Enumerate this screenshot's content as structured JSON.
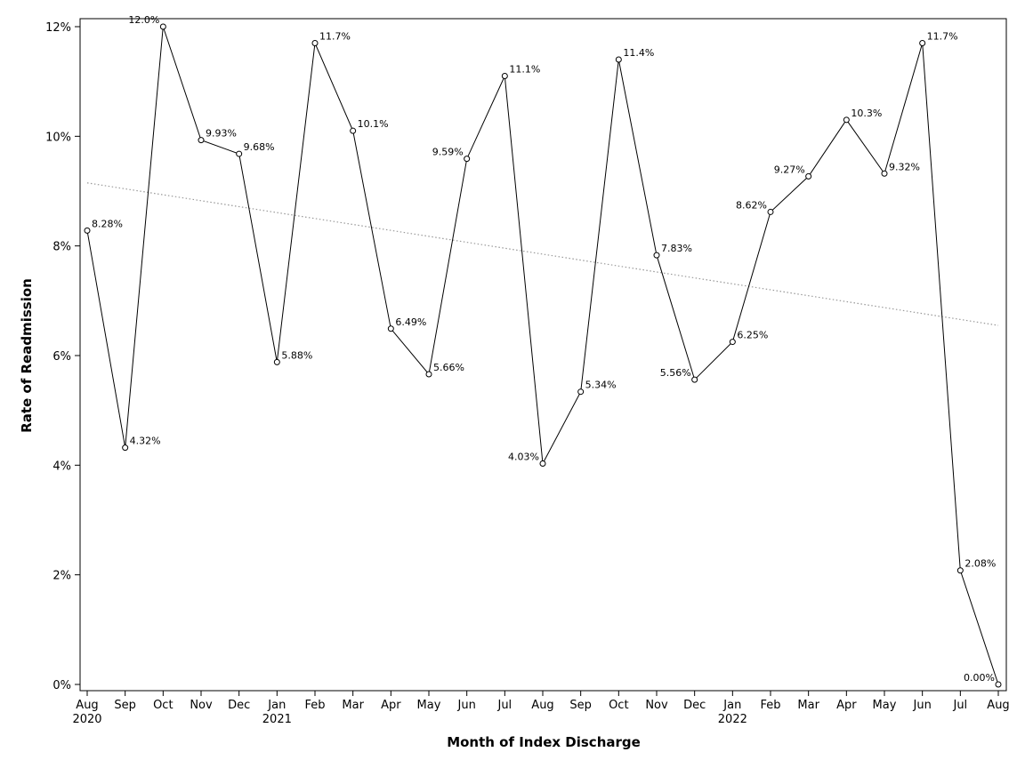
{
  "chart_data": {
    "type": "line",
    "xlabel": "Month of Index Discharge",
    "ylabel": "Rate of Readmission",
    "ylim": [
      0,
      12
    ],
    "yticks": [
      {
        "value": 0,
        "label": "0%"
      },
      {
        "value": 2,
        "label": "2%"
      },
      {
        "value": 4,
        "label": "4%"
      },
      {
        "value": 6,
        "label": "6%"
      },
      {
        "value": 8,
        "label": "8%"
      },
      {
        "value": 10,
        "label": "10%"
      },
      {
        "value": 12,
        "label": "12%"
      }
    ],
    "grid": false,
    "marker": "open-circle",
    "line_color": "#000000",
    "trend_color": "#999999",
    "trendline": {
      "style": "dotted",
      "start": 9.15,
      "end": 6.55
    },
    "points": [
      {
        "date": "2020-08",
        "month": "Aug",
        "year": "2020",
        "value": 8.28,
        "label": "8.28%",
        "label_side": "right"
      },
      {
        "date": "2020-09",
        "month": "Sep",
        "year": "",
        "value": 4.32,
        "label": "4.32%",
        "label_side": "right"
      },
      {
        "date": "2020-10",
        "month": "Oct",
        "year": "",
        "value": 12.0,
        "label": "12.0%",
        "label_side": "left"
      },
      {
        "date": "2020-11",
        "month": "Nov",
        "year": "",
        "value": 9.93,
        "label": "9.93%",
        "label_side": "right"
      },
      {
        "date": "2020-12",
        "month": "Dec",
        "year": "",
        "value": 9.68,
        "label": "9.68%",
        "label_side": "right"
      },
      {
        "date": "2021-01",
        "month": "Jan",
        "year": "2021",
        "value": 5.88,
        "label": "5.88%",
        "label_side": "right"
      },
      {
        "date": "2021-02",
        "month": "Feb",
        "year": "",
        "value": 11.7,
        "label": "11.7%",
        "label_side": "right"
      },
      {
        "date": "2021-03",
        "month": "Mar",
        "year": "",
        "value": 10.1,
        "label": "10.1%",
        "label_side": "right"
      },
      {
        "date": "2021-04",
        "month": "Apr",
        "year": "",
        "value": 6.49,
        "label": "6.49%",
        "label_side": "right"
      },
      {
        "date": "2021-05",
        "month": "May",
        "year": "",
        "value": 5.66,
        "label": "5.66%",
        "label_side": "right"
      },
      {
        "date": "2021-06",
        "month": "Jun",
        "year": "",
        "value": 9.59,
        "label": "9.59%",
        "label_side": "left"
      },
      {
        "date": "2021-07",
        "month": "Jul",
        "year": "",
        "value": 11.1,
        "label": "11.1%",
        "label_side": "right"
      },
      {
        "date": "2021-08",
        "month": "Aug",
        "year": "",
        "value": 4.03,
        "label": "4.03%",
        "label_side": "left"
      },
      {
        "date": "2021-09",
        "month": "Sep",
        "year": "",
        "value": 5.34,
        "label": "5.34%",
        "label_side": "right"
      },
      {
        "date": "2021-10",
        "month": "Oct",
        "year": "",
        "value": 11.4,
        "label": "11.4%",
        "label_side": "right"
      },
      {
        "date": "2021-11",
        "month": "Nov",
        "year": "",
        "value": 7.83,
        "label": "7.83%",
        "label_side": "right"
      },
      {
        "date": "2021-12",
        "month": "Dec",
        "year": "",
        "value": 5.56,
        "label": "5.56%",
        "label_side": "left"
      },
      {
        "date": "2022-01",
        "month": "Jan",
        "year": "2022",
        "value": 6.25,
        "label": "6.25%",
        "label_side": "right"
      },
      {
        "date": "2022-02",
        "month": "Feb",
        "year": "",
        "value": 8.62,
        "label": "8.62%",
        "label_side": "left"
      },
      {
        "date": "2022-03",
        "month": "Mar",
        "year": "",
        "value": 9.27,
        "label": "9.27%",
        "label_side": "left"
      },
      {
        "date": "2022-04",
        "month": "Apr",
        "year": "",
        "value": 10.3,
        "label": "10.3%",
        "label_side": "right"
      },
      {
        "date": "2022-05",
        "month": "May",
        "year": "",
        "value": 9.32,
        "label": "9.32%",
        "label_side": "right"
      },
      {
        "date": "2022-06",
        "month": "Jun",
        "year": "",
        "value": 11.7,
        "label": "11.7%",
        "label_side": "right"
      },
      {
        "date": "2022-07",
        "month": "Jul",
        "year": "",
        "value": 2.08,
        "label": "2.08%",
        "label_side": "right"
      },
      {
        "date": "2022-08",
        "month": "Aug",
        "year": "",
        "value": 0.0,
        "label": "0.00%",
        "label_side": "left"
      }
    ]
  }
}
